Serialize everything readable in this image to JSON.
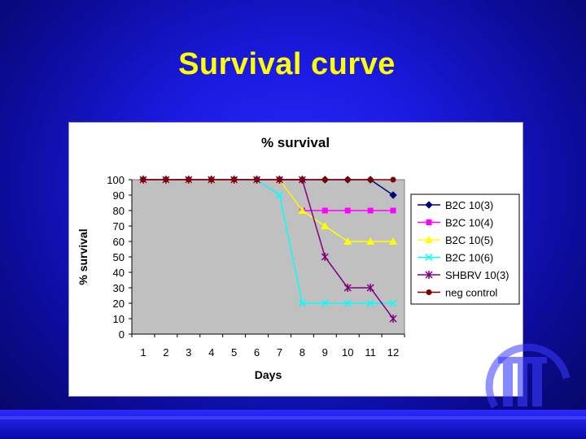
{
  "slide": {
    "title": "Survival curve"
  },
  "chart_data": {
    "type": "line",
    "title": "% survival",
    "xlabel": "Days",
    "ylabel": "% survival",
    "categories": [
      "1",
      "2",
      "3",
      "4",
      "5",
      "6",
      "7",
      "8",
      "9",
      "10",
      "11",
      "12"
    ],
    "ylim": [
      0,
      100
    ],
    "yticks": [
      0,
      10,
      20,
      30,
      40,
      50,
      60,
      70,
      80,
      90,
      100
    ],
    "grid": false,
    "legend_position": "right",
    "plot_background": "#c0c0c0",
    "series": [
      {
        "name": "B2C 10(3)",
        "color": "#000080",
        "marker": "diamond",
        "values": [
          100,
          100,
          100,
          100,
          100,
          100,
          100,
          100,
          100,
          100,
          100,
          90
        ]
      },
      {
        "name": "B2C 10(4)",
        "color": "#ff00ff",
        "marker": "square",
        "values": [
          100,
          100,
          100,
          100,
          100,
          100,
          100,
          80,
          80,
          80,
          80,
          80
        ]
      },
      {
        "name": "B2C 10(5)",
        "color": "#ffff00",
        "marker": "triangle",
        "values": [
          100,
          100,
          100,
          100,
          100,
          100,
          100,
          80,
          70,
          60,
          60,
          60
        ]
      },
      {
        "name": "B2C 10(6)",
        "color": "#00ffff",
        "marker": "x",
        "values": [
          100,
          100,
          100,
          100,
          100,
          100,
          90,
          20,
          20,
          20,
          20,
          20
        ]
      },
      {
        "name": "SHBRV 10(3)",
        "color": "#800080",
        "marker": "star",
        "values": [
          100,
          100,
          100,
          100,
          100,
          100,
          100,
          100,
          50,
          30,
          30,
          10
        ]
      },
      {
        "name": "neg control",
        "color": "#800000",
        "marker": "circle",
        "values": [
          100,
          100,
          100,
          100,
          100,
          100,
          100,
          100,
          100,
          100,
          100,
          100
        ]
      }
    ]
  }
}
